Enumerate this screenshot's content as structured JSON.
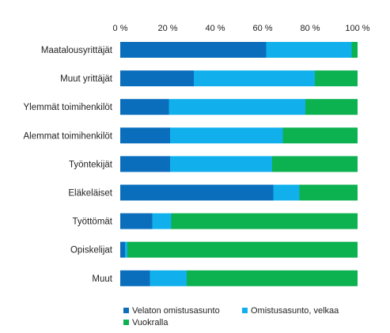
{
  "chart_data": {
    "type": "bar",
    "orientation": "horizontal",
    "stacked": true,
    "x_ticks": [
      "0 %",
      "20 %",
      "40 %",
      "60 %",
      "80 %",
      "100 %"
    ],
    "xlim": [
      0,
      100
    ],
    "categories": [
      "Maatalousyrittäjät",
      "Muut yrittäjät",
      "Ylemmät toimihenkilöt",
      "Alemmat toimihenkilöt",
      "Työntekijät",
      "Eläkeläiset",
      "Työttömät",
      "Opiskelijat",
      "Muut"
    ],
    "series": [
      {
        "name": "Velaton omistusasunto",
        "color": "#0a6ebd",
        "values": [
          61.5,
          31,
          20.5,
          21,
          21,
          64.5,
          13.5,
          2,
          12.5
        ]
      },
      {
        "name": "Omistusasunto, velkaa",
        "color": "#11b0ec",
        "values": [
          36,
          51,
          57.5,
          47.5,
          43,
          11,
          8,
          1,
          15.5
        ]
      },
      {
        "name": "Vuokralla",
        "color": "#0cb150",
        "values": [
          2.5,
          18,
          22,
          31.5,
          36,
          24.5,
          78.5,
          97,
          72
        ]
      }
    ],
    "legend_position": "bottom",
    "grid": false
  }
}
